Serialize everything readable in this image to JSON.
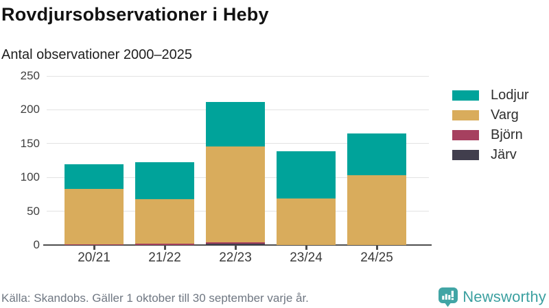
{
  "header": {
    "title": "Rovdjursobservationer i Heby",
    "subtitle": "Antal observationer 2000–2025"
  },
  "chart_data": {
    "type": "bar",
    "stacked": true,
    "title": "Rovdjursobservationer i Heby",
    "subtitle": "Antal observationer 2000–2025",
    "categories": [
      "20/21",
      "21/22",
      "22/23",
      "23/24",
      "24/25"
    ],
    "series": [
      {
        "name": "Järv",
        "color": "#413e4d",
        "values": [
          0,
          0,
          2,
          0,
          0
        ]
      },
      {
        "name": "Björn",
        "color": "#a6405f",
        "values": [
          1,
          2,
          2,
          0,
          0
        ]
      },
      {
        "name": "Varg",
        "color": "#d9ac5c",
        "values": [
          82,
          66,
          142,
          69,
          103
        ]
      },
      {
        "name": "Lodjur",
        "color": "#00a39a",
        "values": [
          36,
          54,
          66,
          70,
          62
        ]
      }
    ],
    "totals": [
      119,
      122,
      212,
      139,
      165
    ],
    "legend_order": [
      "Lodjur",
      "Varg",
      "Björn",
      "Järv"
    ],
    "legend_position": "right",
    "ylim": [
      0,
      250
    ],
    "yticks": [
      0,
      50,
      100,
      150,
      200,
      250
    ],
    "grid": true
  },
  "footer": {
    "source": "Källa: Skandobs. Gäller 1 oktober till 30 september varje år.",
    "brand": "Newsworthy"
  },
  "colors": {
    "accent_teal": "#00a39a",
    "brand_teal": "#3ba0a0",
    "axis": "#4d4d4d",
    "gridline": "#e2e2e2"
  }
}
